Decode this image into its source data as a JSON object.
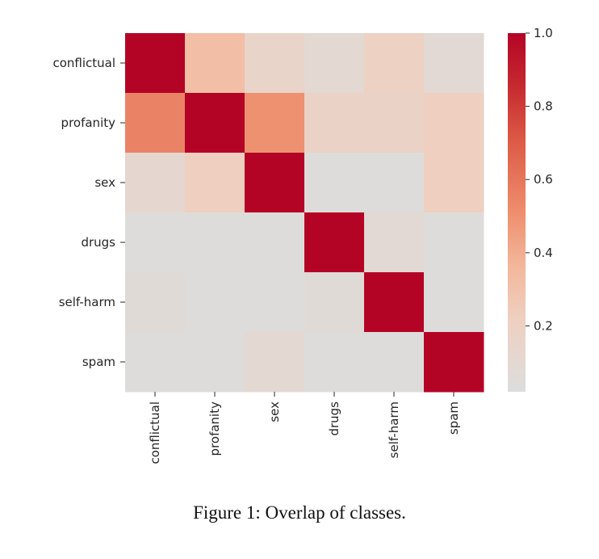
{
  "caption": "Figure 1: Overlap of classes.",
  "colors": {
    "cmap": "coolwarm-upper",
    "low": "#dcdddd",
    "high": "#b40426"
  },
  "chart_data": {
    "type": "heatmap",
    "title": "",
    "xlabel": "",
    "ylabel": "",
    "rows": [
      "conflictual",
      "profanity",
      "sex",
      "drugs",
      "self-harm",
      "spam"
    ],
    "columns": [
      "conflictual",
      "profanity",
      "sex",
      "drugs",
      "self-harm",
      "spam"
    ],
    "values": [
      [
        1.0,
        0.32,
        0.16,
        0.1,
        0.2,
        0.08
      ],
      [
        0.55,
        1.0,
        0.5,
        0.18,
        0.18,
        0.22
      ],
      [
        0.12,
        0.22,
        1.0,
        0.04,
        0.04,
        0.22
      ],
      [
        0.04,
        0.04,
        0.04,
        1.0,
        0.08,
        0.04
      ],
      [
        0.06,
        0.04,
        0.04,
        0.06,
        1.0,
        0.04
      ],
      [
        0.04,
        0.04,
        0.1,
        0.04,
        0.04,
        1.0
      ]
    ],
    "colorbar": {
      "min": 0.02,
      "max": 1.0,
      "ticks": [
        0.2,
        0.4,
        0.6,
        0.8,
        1.0
      ],
      "tick_labels": [
        "0.2",
        "0.4",
        "0.6",
        "0.8",
        "1.0"
      ]
    },
    "legend": "colorbar-right",
    "grid": false
  }
}
